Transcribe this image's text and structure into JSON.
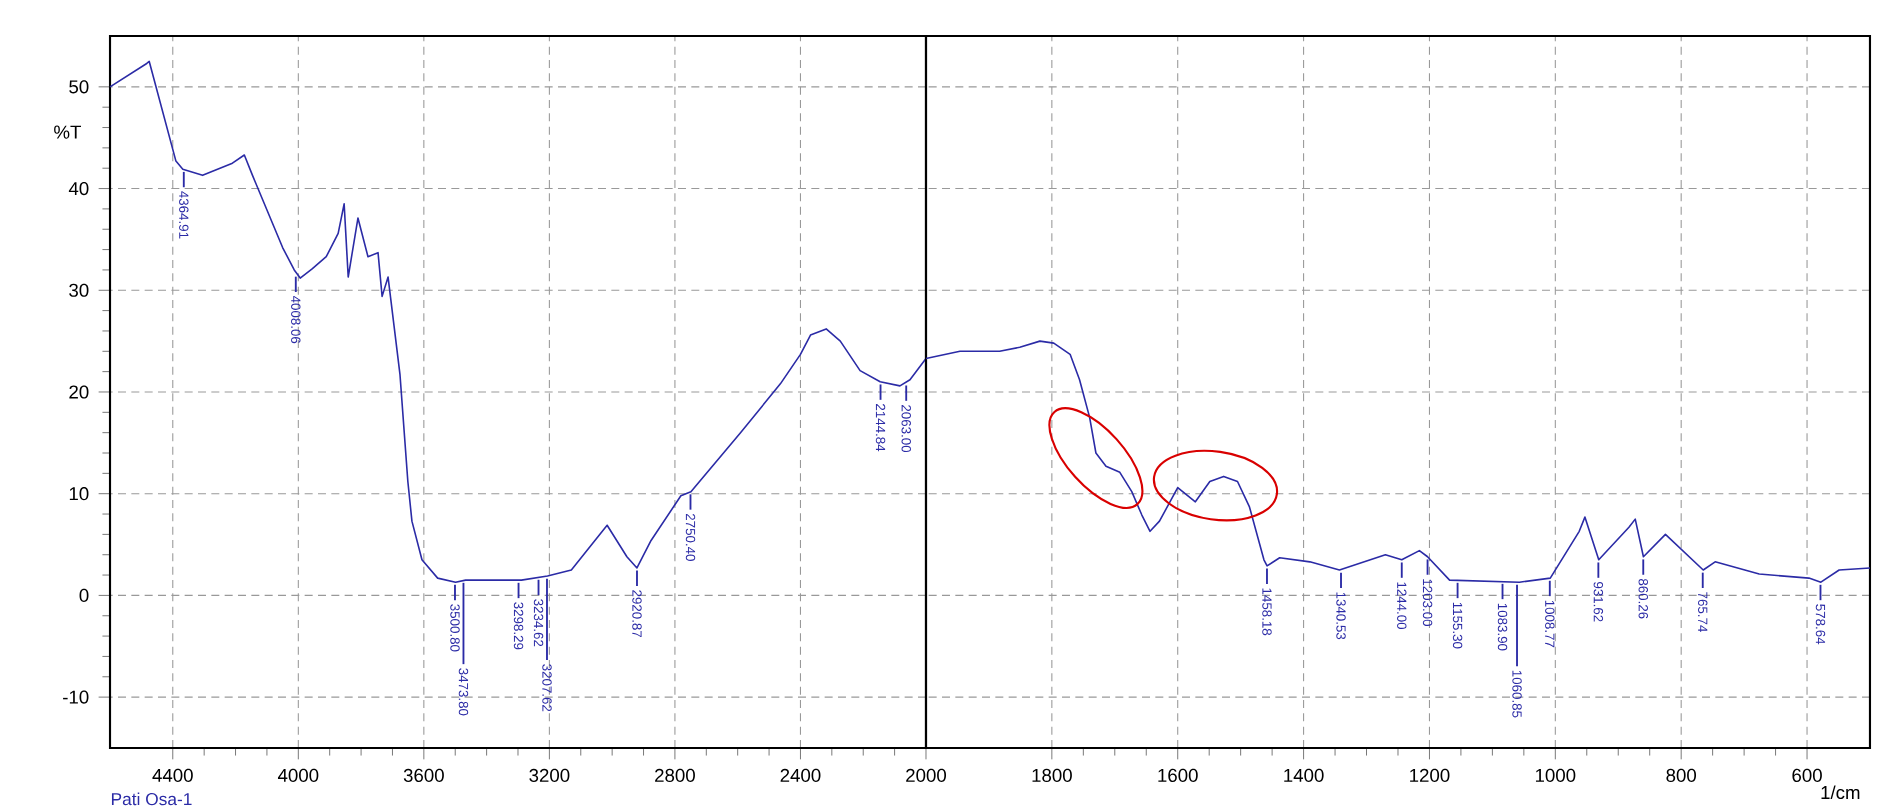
{
  "chart_data": [
    {
      "type": "line",
      "color": "#2b2ba6",
      "ylabel": "%T",
      "xlim": [
        4600,
        2000
      ],
      "ylim": [
        -15,
        55
      ],
      "xticks": [
        4400,
        4000,
        3600,
        3200,
        2800,
        2400,
        2000
      ],
      "yticks": [
        -10,
        0,
        10,
        20,
        30,
        40,
        50
      ],
      "grid": true,
      "x": [
        4600,
        4483,
        4475,
        4390,
        4368,
        4305,
        4210,
        4172,
        4146,
        4050,
        4013,
        3994,
        3956,
        3911,
        3873,
        3854,
        3841,
        3810,
        3778,
        3746,
        3733,
        3714,
        3695,
        3676,
        3651,
        3638,
        3606,
        3556,
        3499,
        3467,
        3289,
        3206,
        3130,
        3016,
        2953,
        2921,
        2876,
        2781,
        2749,
        2591,
        2464,
        2400,
        2368,
        2318,
        2273,
        2210,
        2146,
        2083,
        2051,
        2000
      ],
      "values": [
        50.0,
        52.3,
        52.5,
        42.7,
        41.9,
        41.3,
        42.5,
        43.3,
        41.3,
        34.2,
        32.0,
        31.2,
        32.1,
        33.3,
        35.6,
        38.5,
        31.3,
        37.1,
        33.3,
        33.7,
        29.4,
        31.3,
        26.5,
        21.7,
        11.2,
        7.3,
        3.5,
        1.7,
        1.3,
        1.5,
        1.5,
        1.9,
        2.5,
        6.9,
        3.8,
        2.7,
        5.4,
        9.8,
        10.2,
        16.0,
        20.8,
        23.7,
        25.6,
        26.2,
        25.0,
        22.1,
        21.0,
        20.6,
        21.2,
        23.3
      ],
      "annotations": [
        "Pati Osa-1",
        {
          "text": "4364.91",
          "x": 4364.91,
          "y": 41.9
        },
        {
          "text": "4008.06",
          "x": 4008.06,
          "y": 31.6
        },
        {
          "text": "3500.80",
          "x": 3500.8,
          "y": 1.3
        },
        {
          "text": "3473.80",
          "x": 3473.8,
          "y": 1.5
        },
        {
          "text": "3298.29",
          "x": 3298.29,
          "y": 1.5
        },
        {
          "text": "3234.62",
          "x": 3234.62,
          "y": 1.8
        },
        {
          "text": "3207.62",
          "x": 3207.62,
          "y": 1.9
        },
        {
          "text": "2920.87",
          "x": 2920.87,
          "y": 2.7
        },
        {
          "text": "2750.40",
          "x": 2750.4,
          "y": 10.2
        },
        {
          "text": "2144.84",
          "x": 2144.84,
          "y": 21.0
        },
        {
          "text": "2063.00",
          "x": 2063,
          "y": 20.9
        }
      ]
    },
    {
      "type": "line",
      "color": "#2b2ba6",
      "xlabel": "1/cm",
      "xlim": [
        2000,
        500
      ],
      "ylim": [
        -15,
        55
      ],
      "xticks": [
        1800,
        1600,
        1400,
        1200,
        1000,
        800,
        600
      ],
      "yticks": [
        -10,
        0,
        10,
        20,
        30,
        40,
        50
      ],
      "grid": true,
      "tick_labels": "x",
      "x": [
        2000,
        1946,
        1883,
        1851,
        1819,
        1797,
        1771,
        1756,
        1740,
        1730,
        1714,
        1692,
        1673,
        1657,
        1644,
        1629,
        1600,
        1572,
        1549,
        1527,
        1505,
        1486,
        1463,
        1458,
        1438,
        1390,
        1343,
        1270,
        1244,
        1216,
        1203,
        1168,
        1057,
        1008,
        962,
        953,
        931,
        883,
        873,
        860,
        825,
        765,
        746,
        676,
        597,
        578,
        549,
        500
      ],
      "values": [
        23.3,
        24,
        24,
        24.4,
        25,
        24.8,
        23.7,
        21.2,
        17.5,
        14,
        12.7,
        12.1,
        10.2,
        7.9,
        6.3,
        7.3,
        10.6,
        9.2,
        11.2,
        11.7,
        11.2,
        8.7,
        3.5,
        2.9,
        3.7,
        3.3,
        2.5,
        4.0,
        3.5,
        4.4,
        3.8,
        1.5,
        1.3,
        1.7,
        6.3,
        7.7,
        3.5,
        6.7,
        7.5,
        3.8,
        6.0,
        2.5,
        3.3,
        2.1,
        1.7,
        1.3,
        2.5,
        2.7
      ],
      "annotations": [
        {
          "text": "1458.18",
          "x": 1458.18,
          "y": 2.9
        },
        {
          "text": "1340.53",
          "x": 1340.53,
          "y": 2.5
        },
        {
          "text": "1244.00",
          "x": 1244,
          "y": 3.5
        },
        {
          "text": "1203.00",
          "x": 1203,
          "y": 3.8
        },
        {
          "text": "1155.30",
          "x": 1155.3,
          "y": 1.5
        },
        {
          "text": "1083.90",
          "x": 1083.9,
          "y": 1.4
        },
        {
          "text": "1060.85",
          "x": 1060.85,
          "y": 1.3
        },
        {
          "text": "1008.77",
          "x": 1008.77,
          "y": 1.7
        },
        {
          "text": "931.62",
          "x": 931.62,
          "y": 3.5
        },
        {
          "text": "860.26",
          "x": 860.26,
          "y": 3.8
        },
        {
          "text": "765.74",
          "x": 765.74,
          "y": 2.5
        },
        {
          "text": "578.64",
          "x": 578.64,
          "y": 1.3
        }
      ]
    }
  ]
}
